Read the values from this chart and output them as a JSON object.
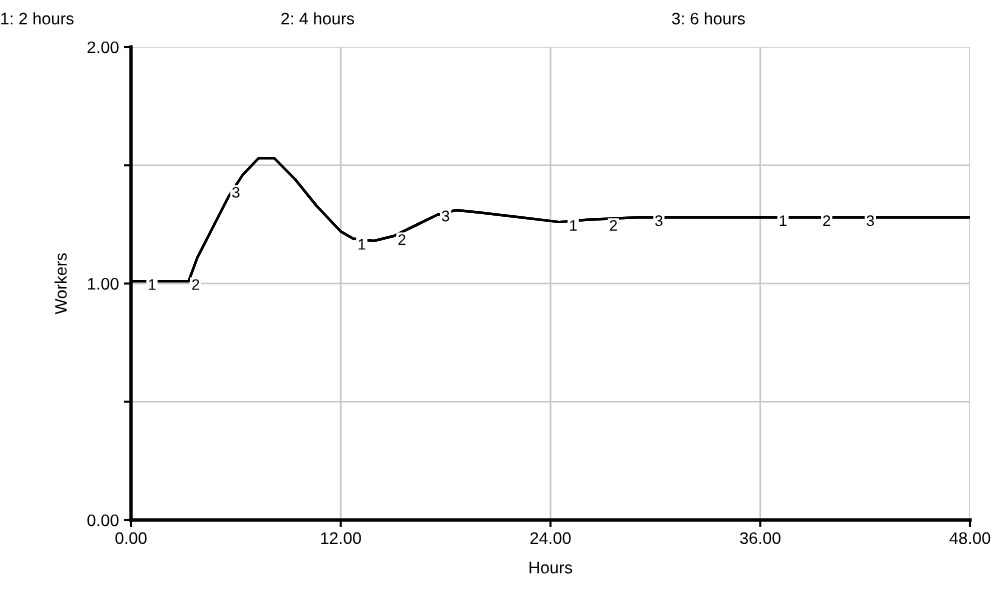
{
  "chart_data": {
    "type": "line",
    "xlabel": "Hours",
    "ylabel": "Workers",
    "xlim": [
      0,
      48
    ],
    "ylim": [
      0,
      2
    ],
    "xticks": [
      {
        "value": 0,
        "label": "0.00"
      },
      {
        "value": 12,
        "label": "12.00"
      },
      {
        "value": 24,
        "label": "24.00"
      },
      {
        "value": 36,
        "label": "36.00"
      },
      {
        "value": 48,
        "label": "48.00"
      }
    ],
    "yticks": [
      {
        "value": 0,
        "label": "0.00"
      },
      {
        "value": 0.5,
        "label": null
      },
      {
        "value": 1,
        "label": "1.00"
      },
      {
        "value": 1.5,
        "label": null
      },
      {
        "value": 2,
        "label": "2.00"
      }
    ],
    "grid": true,
    "x": [
      0,
      3.3,
      3.8,
      5.6,
      6.4,
      7.3,
      8.2,
      9.4,
      10.6,
      12,
      12.7,
      13.9,
      15,
      16.4,
      17.5,
      18.6,
      20,
      22.3,
      24.5,
      26.2,
      29,
      48
    ],
    "series": [
      {
        "color": "#000000",
        "values": [
          1.01,
          1.01,
          1.11,
          1.37,
          1.46,
          1.53,
          1.53,
          1.44,
          1.33,
          1.22,
          1.19,
          1.18,
          1.2,
          1.25,
          1.29,
          1.31,
          1.3,
          1.28,
          1.26,
          1.27,
          1.28,
          1.28
        ]
      },
      {
        "color": "#000000",
        "values": [
          1.01,
          1.01,
          1.11,
          1.37,
          1.46,
          1.53,
          1.53,
          1.44,
          1.33,
          1.22,
          1.19,
          1.18,
          1.2,
          1.25,
          1.29,
          1.31,
          1.3,
          1.28,
          1.26,
          1.27,
          1.28,
          1.28
        ]
      },
      {
        "color": "#000000",
        "values": [
          1.01,
          1.01,
          1.11,
          1.37,
          1.46,
          1.53,
          1.53,
          1.44,
          1.33,
          1.22,
          1.19,
          1.18,
          1.2,
          1.25,
          1.29,
          1.31,
          1.3,
          1.28,
          1.26,
          1.27,
          1.28,
          1.28
        ]
      }
    ],
    "annotations": [
      "1: 2 hours",
      "2: 4 hours",
      "3: 6 hours",
      {
        "text": "1",
        "x": 1.2,
        "y": 0.99
      },
      {
        "text": "2",
        "x": 3.7,
        "y": 0.99
      },
      {
        "text": "3",
        "x": 6.0,
        "y": 1.38
      },
      {
        "text": "1",
        "x": 13.2,
        "y": 1.16
      },
      {
        "text": "2",
        "x": 15.5,
        "y": 1.18
      },
      {
        "text": "3",
        "x": 18.0,
        "y": 1.28
      },
      {
        "text": "1",
        "x": 25.3,
        "y": 1.24
      },
      {
        "text": "2",
        "x": 27.6,
        "y": 1.24
      },
      {
        "text": "3",
        "x": 30.2,
        "y": 1.26
      },
      {
        "text": "1",
        "x": 37.3,
        "y": 1.26
      },
      {
        "text": "2",
        "x": 39.8,
        "y": 1.26
      },
      {
        "text": "3",
        "x": 42.3,
        "y": 1.26
      }
    ]
  }
}
